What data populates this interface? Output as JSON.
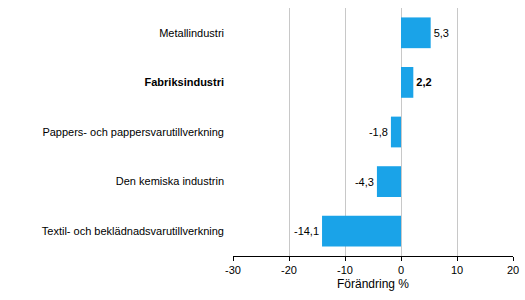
{
  "chart_data": {
    "type": "bar",
    "orientation": "horizontal",
    "categories": [
      "Metallindustri",
      "Fabriksindustri",
      "Pappers- och pappersvarutillverkning",
      "Den kemiska industrin",
      "Textil- och beklädnadsvarutillverkning"
    ],
    "values": [
      5.3,
      2.2,
      -1.8,
      -4.3,
      -14.1
    ],
    "value_labels": [
      "5,3",
      "2,2",
      "-1,8",
      "-4,3",
      "-14,1"
    ],
    "data_labels": true,
    "color": "#1aa3e8",
    "x_label": "Förändring %",
    "xlim": [
      -30,
      20
    ],
    "xticks": [
      -30,
      -20,
      -10,
      0,
      10,
      20
    ],
    "grid": true
  }
}
